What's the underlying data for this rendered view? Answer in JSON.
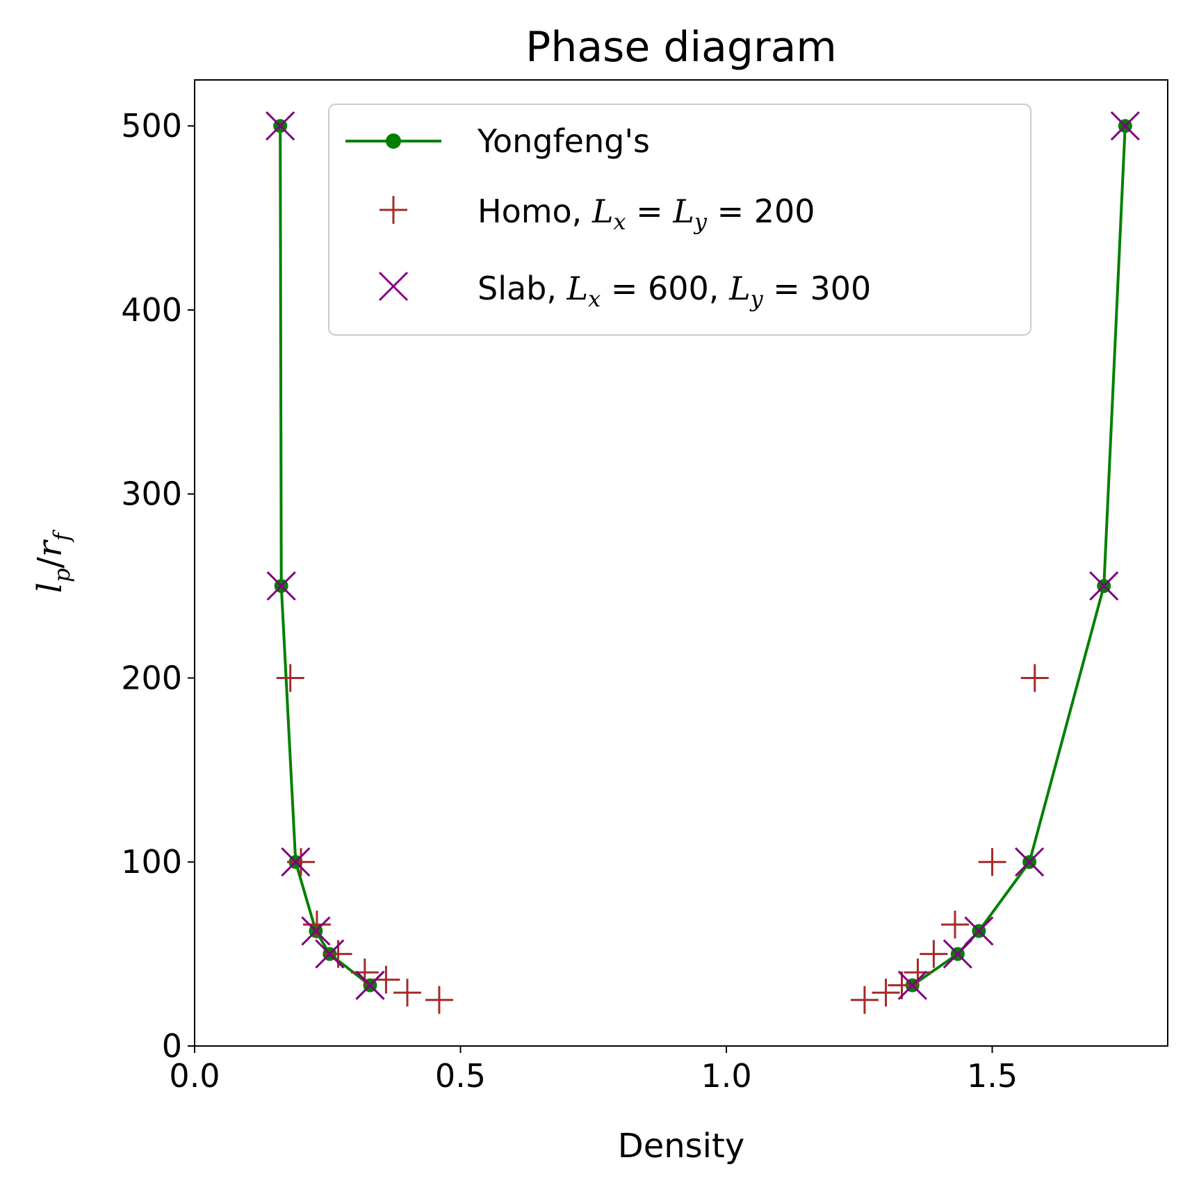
{
  "chart_data": {
    "type": "scatter",
    "title": "Phase diagram",
    "xlabel": "Density",
    "ylabel": "l_p/r_f",
    "xlim": [
      0.0,
      1.83
    ],
    "ylim": [
      0,
      525
    ],
    "xticks": [
      0.0,
      0.5,
      1.0,
      1.5
    ],
    "xtick_labels": [
      "0.0",
      "0.5",
      "1.0",
      "1.5"
    ],
    "yticks": [
      0,
      100,
      200,
      300,
      400,
      500
    ],
    "ytick_labels": [
      "0",
      "100",
      "200",
      "300",
      "400",
      "500"
    ],
    "grid": false,
    "legend_position": "top-right",
    "series": [
      {
        "name": "Yongfeng's",
        "style": "line-marker",
        "color": "#008000",
        "branches": [
          {
            "x": [
              0.33,
              0.254,
              0.228,
              0.19,
              0.163,
              0.161
            ],
            "y": [
              33,
              50,
              62.5,
              100,
              250,
              500
            ]
          },
          {
            "x": [
              1.35,
              1.435,
              1.475,
              1.57,
              1.71,
              1.75
            ],
            "y": [
              33,
              50,
              62.5,
              100,
              250,
              500
            ]
          }
        ]
      },
      {
        "name": "Homo, L_x = L_y = 200",
        "style": "plus",
        "color": "#a52a2a",
        "x": [
          0.18,
          0.2,
          0.23,
          0.27,
          0.32,
          0.36,
          0.4,
          0.46,
          1.26,
          1.3,
          1.33,
          1.36,
          1.39,
          1.43,
          1.5,
          1.58
        ],
        "y": [
          200,
          100,
          66,
          50,
          40,
          36,
          29,
          25,
          25,
          29,
          33,
          40,
          50,
          66,
          100,
          200
        ]
      },
      {
        "name": "Slab, L_x = 600, L_y = 300",
        "style": "x",
        "color": "#800080",
        "x": [
          0.161,
          0.163,
          0.19,
          0.228,
          0.254,
          0.33,
          0.33,
          1.35,
          1.435,
          1.475,
          1.57,
          1.71,
          1.75
        ],
        "y": [
          500,
          250,
          100,
          62.5,
          50,
          33,
          33,
          33,
          50,
          62.5,
          100,
          250,
          500
        ]
      }
    ]
  }
}
